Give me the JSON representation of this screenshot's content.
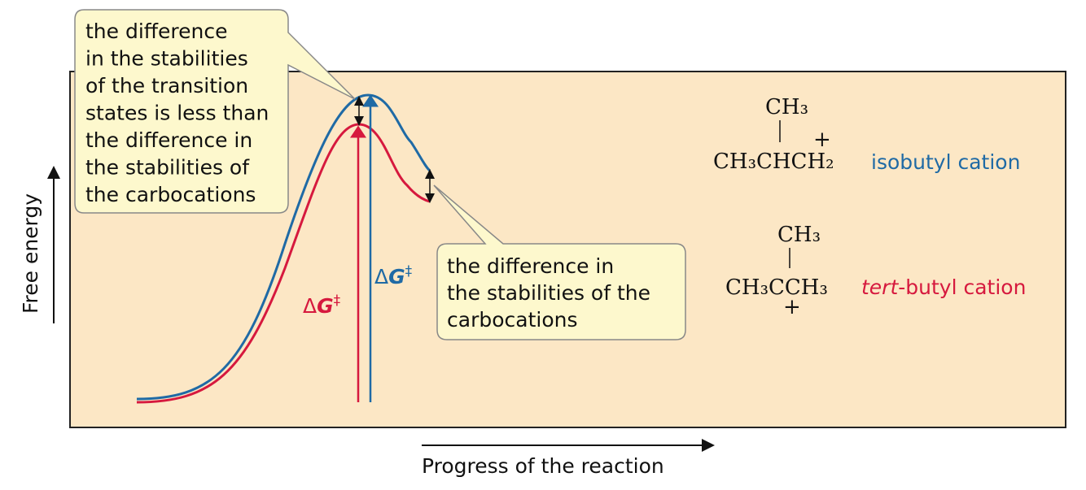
{
  "axes": {
    "y_label": "Free energy",
    "x_label": "Progress of the reaction"
  },
  "callouts": [
    {
      "lines": [
        "the difference",
        "in the stabilities",
        "of the transition",
        "states is less than",
        "the difference in",
        "the stabilities of",
        "the carbocations"
      ]
    },
    {
      "lines": [
        "the difference in",
        "the stabilities of the",
        "carbocations"
      ]
    }
  ],
  "activation_labels": [
    {
      "prefix": "Δ",
      "variable": "G",
      "superscript": "‡"
    },
    {
      "prefix": "Δ",
      "variable": "G",
      "superscript": "‡"
    }
  ],
  "cations": [
    {
      "top": "CH₃",
      "charge": "+",
      "formula": "CH₃CHCH₂",
      "name": "isobutyl cation"
    },
    {
      "top": "CH₃",
      "charge": "+",
      "formula": "CH₃CCH₃",
      "name_prefix": "tert",
      "name": "-butyl cation"
    }
  ]
}
